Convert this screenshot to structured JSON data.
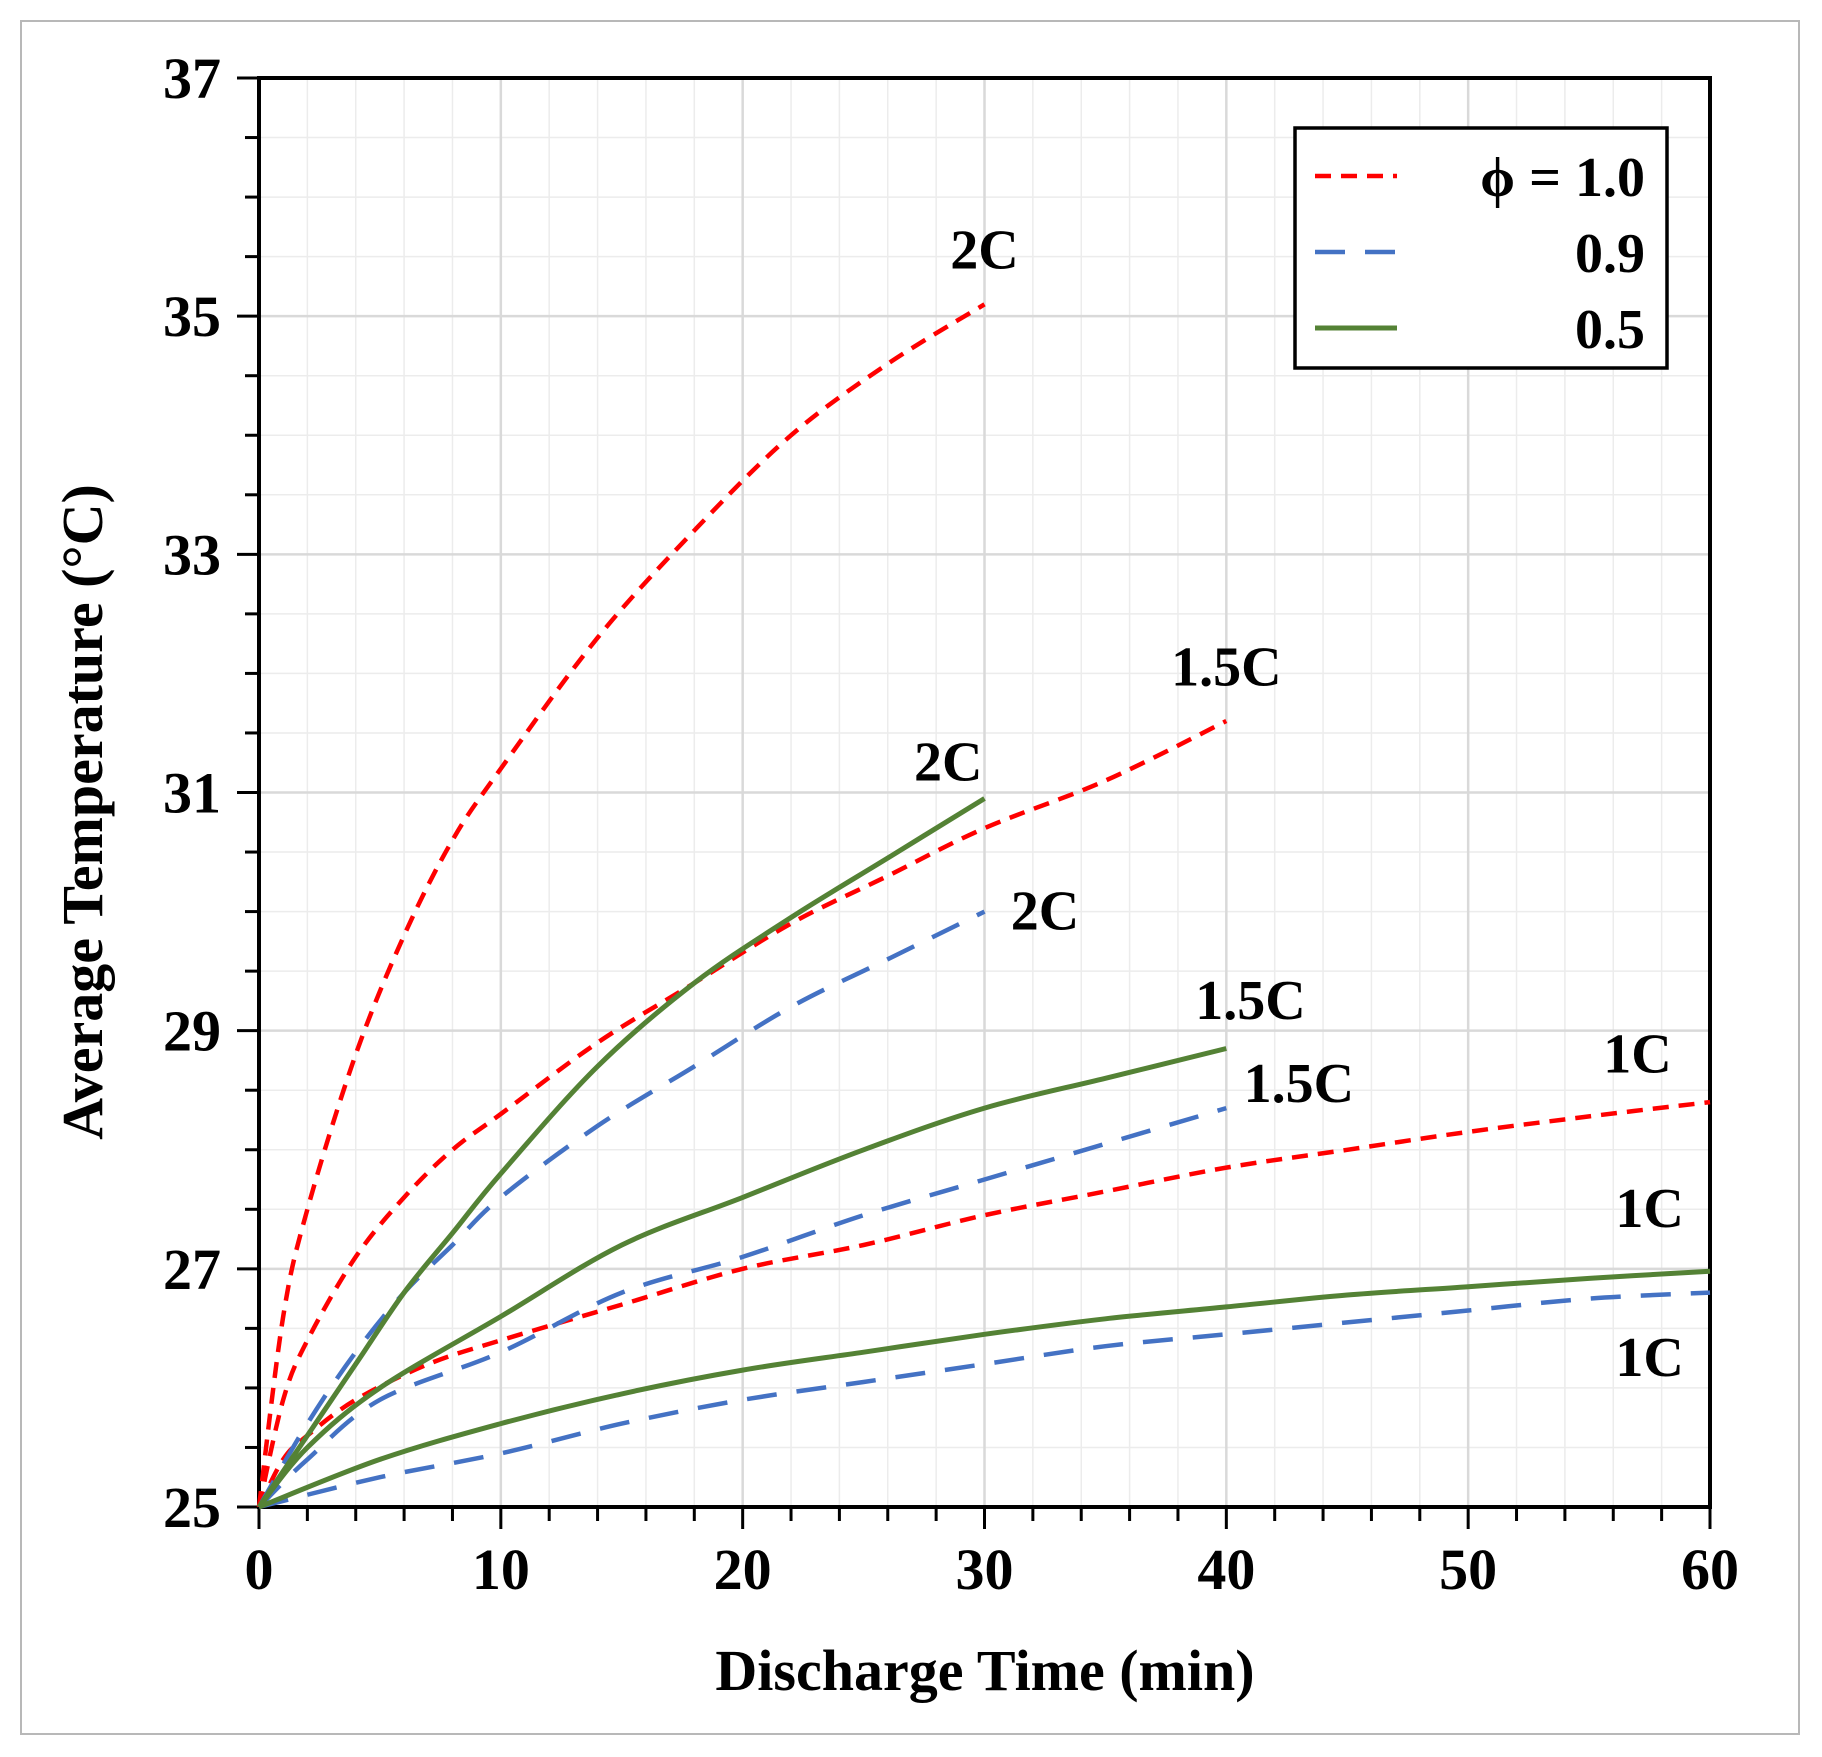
{
  "chart_data": {
    "type": "line",
    "title": "",
    "xlabel": "Discharge Time (min)",
    "ylabel": "Average Temperature (°C)",
    "xlim": [
      0,
      60
    ],
    "ylim": [
      25,
      37
    ],
    "xticks": [
      0,
      10,
      20,
      30,
      40,
      50,
      60
    ],
    "yticks": [
      25,
      27,
      29,
      31,
      33,
      35,
      37
    ],
    "grid": true,
    "legend": {
      "position": "top-right",
      "entries": [
        {
          "label": "ϕ = 1.0",
          "color": "#ff0000",
          "style": "dashed-short"
        },
        {
          "label": "0.9",
          "color": "#4472c4",
          "style": "dashed-long"
        },
        {
          "label": "0.5",
          "color": "#548235",
          "style": "solid"
        }
      ]
    },
    "series": [
      {
        "name": "ϕ = 1.0, 2C",
        "group": "1.0",
        "label": "2C",
        "x": [
          0,
          1,
          2,
          4,
          6,
          8,
          10,
          14,
          18,
          22,
          26,
          30
        ],
        "y": [
          25,
          26.6,
          27.5,
          28.8,
          29.8,
          30.6,
          31.2,
          32.3,
          33.2,
          34.0,
          34.6,
          35.1
        ]
      },
      {
        "name": "ϕ = 1.0, 1.5C",
        "group": "1.0",
        "label": "1.5C",
        "x": [
          0,
          1,
          2,
          4,
          6,
          8,
          10,
          14,
          18,
          22,
          26,
          30,
          35,
          40
        ],
        "y": [
          25,
          25.9,
          26.4,
          27.1,
          27.6,
          28.0,
          28.3,
          28.9,
          29.4,
          29.9,
          30.3,
          30.7,
          31.1,
          31.6
        ]
      },
      {
        "name": "ϕ = 1.0, 1C",
        "group": "1.0",
        "label": "1C",
        "x": [
          0,
          1,
          2,
          4,
          7,
          10,
          15,
          20,
          25,
          30,
          35,
          40,
          45,
          50,
          55,
          60
        ],
        "y": [
          25,
          25.4,
          25.6,
          25.9,
          26.2,
          26.4,
          26.7,
          27.0,
          27.2,
          27.45,
          27.65,
          27.85,
          28.0,
          28.15,
          28.28,
          28.4
        ]
      },
      {
        "name": "ϕ = 0.9, 2C",
        "group": "0.9",
        "label": "2C",
        "x": [
          0,
          2,
          4,
          6,
          8,
          10,
          14,
          18,
          22,
          26,
          30
        ],
        "y": [
          25,
          25.7,
          26.3,
          26.8,
          27.2,
          27.6,
          28.2,
          28.7,
          29.2,
          29.6,
          30.0
        ]
      },
      {
        "name": "ϕ = 0.9, 1.5C",
        "group": "0.9",
        "label": "1.5C",
        "x": [
          0,
          2,
          5,
          10,
          15,
          20,
          25,
          30,
          35,
          40
        ],
        "y": [
          25,
          25.4,
          25.9,
          26.3,
          26.8,
          27.1,
          27.45,
          27.75,
          28.05,
          28.35
        ]
      },
      {
        "name": "ϕ = 0.9, 1C",
        "group": "0.9",
        "label": "1C",
        "x": [
          0,
          5,
          10,
          15,
          20,
          25,
          30,
          35,
          40,
          45,
          50,
          55,
          60
        ],
        "y": [
          25,
          25.25,
          25.45,
          25.7,
          25.9,
          26.05,
          26.2,
          26.35,
          26.45,
          26.55,
          26.65,
          26.75,
          26.8
        ]
      },
      {
        "name": "ϕ = 0.5, 2C",
        "group": "0.5",
        "label": "2C",
        "x": [
          0,
          2,
          4,
          6,
          8,
          10,
          14,
          18,
          22,
          26,
          30
        ],
        "y": [
          25,
          25.6,
          26.2,
          26.8,
          27.3,
          27.8,
          28.7,
          29.4,
          29.95,
          30.45,
          30.95
        ]
      },
      {
        "name": "ϕ = 0.5, 1.5C",
        "group": "0.5",
        "label": "1.5C",
        "x": [
          0,
          2,
          5,
          10,
          15,
          20,
          25,
          30,
          35,
          40
        ],
        "y": [
          25,
          25.5,
          26.0,
          26.6,
          27.2,
          27.6,
          28.0,
          28.35,
          28.6,
          28.85
        ]
      },
      {
        "name": "ϕ = 0.5, 1C",
        "group": "0.5",
        "label": "1C",
        "x": [
          0,
          5,
          10,
          15,
          20,
          25,
          30,
          35,
          40,
          45,
          50,
          55,
          60
        ],
        "y": [
          25,
          25.4,
          25.7,
          25.95,
          26.15,
          26.3,
          26.45,
          26.58,
          26.68,
          26.78,
          26.85,
          26.92,
          26.98
        ]
      }
    ],
    "annotations": [
      {
        "text": "2C",
        "x": 30,
        "y": 35.4
      },
      {
        "text": "1.5C",
        "x": 40,
        "y": 31.9
      },
      {
        "text": "2C",
        "x": 28.5,
        "y": 31.1
      },
      {
        "text": "2C",
        "x": 32.5,
        "y": 29.85
      },
      {
        "text": "1.5C",
        "x": 41,
        "y": 29.1
      },
      {
        "text": "1.5C",
        "x": 43,
        "y": 28.4
      },
      {
        "text": "1C",
        "x": 57,
        "y": 28.65
      },
      {
        "text": "1C",
        "x": 57.5,
        "y": 27.35
      },
      {
        "text": "1C",
        "x": 57.5,
        "y": 26.1
      }
    ]
  },
  "colors": {
    "phi_1_0": "#ff0000",
    "phi_0_9": "#4472c4",
    "phi_0_5": "#548235",
    "grid": "#d9d9d9",
    "axis": "#000000"
  }
}
